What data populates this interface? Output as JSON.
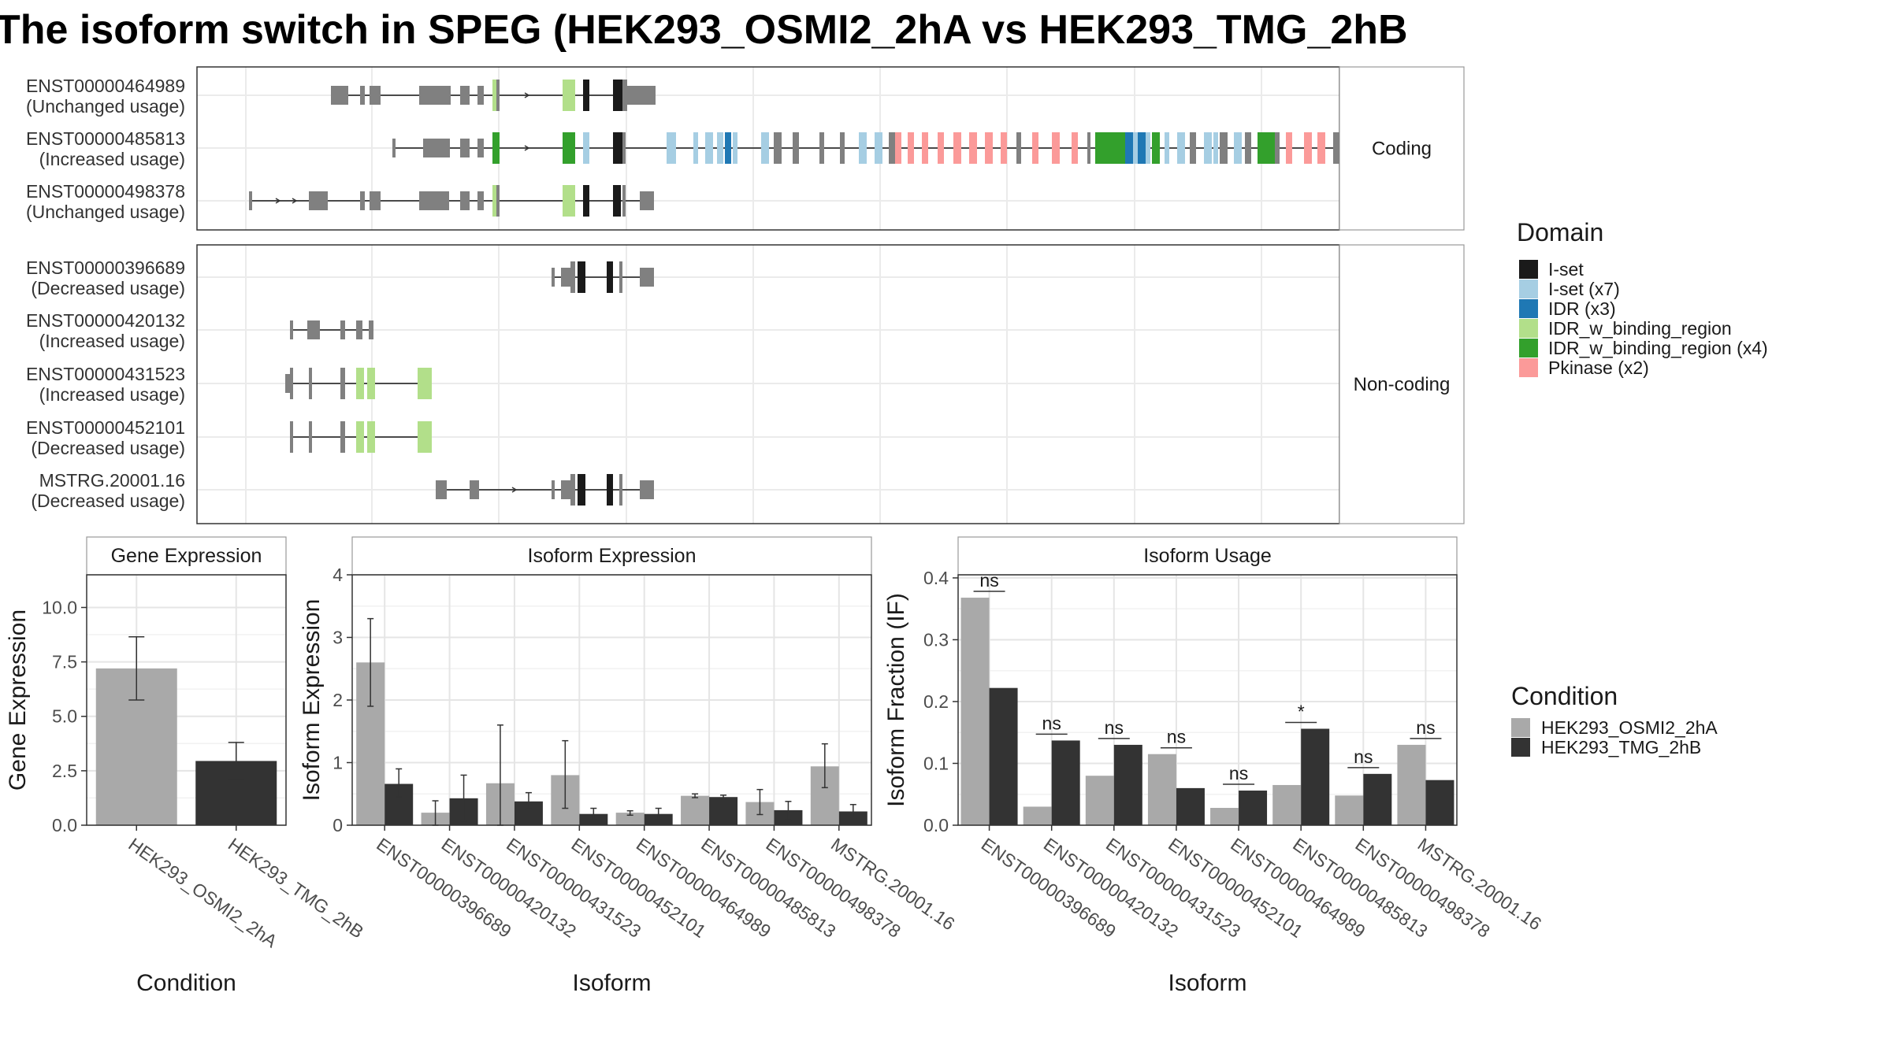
{
  "title": "The isoform switch in SPEG (HEK293_OSMI2_2hA vs HEK293_TMG_2hB",
  "structure": {
    "facets": [
      "Coding",
      "Non-coding"
    ],
    "transcripts": {
      "coding": [
        {
          "id": "ENST00000464989",
          "usage": "(Unchanged usage)"
        },
        {
          "id": "ENST00000485813",
          "usage": "(Increased usage)"
        },
        {
          "id": "ENST00000498378",
          "usage": "(Unchanged usage)"
        }
      ],
      "noncoding": [
        {
          "id": "ENST00000396689",
          "usage": "(Decreased usage)"
        },
        {
          "id": "ENST00000420132",
          "usage": "(Increased usage)"
        },
        {
          "id": "ENST00000431523",
          "usage": "(Increased usage)"
        },
        {
          "id": "ENST00000452101",
          "usage": "(Decreased usage)"
        },
        {
          "id": "MSTRG.20001.16",
          "usage": "(Decreased usage)"
        }
      ]
    }
  },
  "legend_domain": {
    "title": "Domain",
    "items": [
      {
        "label": "I-set",
        "color": "#1a1a1a"
      },
      {
        "label": "I-set (x7)",
        "color": "#a6cee3"
      },
      {
        "label": "IDR (x3)",
        "color": "#1f78b4"
      },
      {
        "label": "IDR_w_binding_region",
        "color": "#b2df8a"
      },
      {
        "label": "IDR_w_binding_region (x4)",
        "color": "#33a02c"
      },
      {
        "label": "Pkinase (x2)",
        "color": "#fb9a99"
      }
    ]
  },
  "legend_condition": {
    "title": "Condition",
    "items": [
      {
        "label": "HEK293_OSMI2_2hA",
        "color": "#a9a9a9"
      },
      {
        "label": "HEK293_TMG_2hB",
        "color": "#333333"
      }
    ]
  },
  "chart_data": [
    {
      "type": "bar",
      "title": "Gene Expression",
      "xlabel": "Condition",
      "ylabel": "Gene Expression",
      "ylim": [
        0,
        11.5
      ],
      "yticks": [
        "0.0",
        "2.5",
        "5.0",
        "7.5",
        "10.0"
      ],
      "categories": [
        "HEK293_OSMI2_2hA",
        "HEK293_TMG_2hB"
      ],
      "values": [
        7.2,
        2.95
      ],
      "err_low": [
        5.75,
        2.1
      ],
      "err_high": [
        8.65,
        3.8
      ]
    },
    {
      "type": "bar",
      "title": "Isoform Expression",
      "xlabel": "Isoform",
      "ylabel": "Isoform Expression",
      "ylim": [
        0,
        4
      ],
      "yticks": [
        "0",
        "1",
        "2",
        "3",
        "4"
      ],
      "categories": [
        "ENST00000396689",
        "ENST00000420132",
        "ENST00000431523",
        "ENST00000452101",
        "ENST00000464989",
        "ENST00000485813",
        "ENST00000498378",
        "MSTRG.20001.16"
      ],
      "series": [
        {
          "name": "HEK293_OSMI2_2hA",
          "values": [
            2.6,
            0.2,
            0.67,
            0.8,
            0.2,
            0.47,
            0.37,
            0.94
          ],
          "err_low": [
            1.9,
            0.0,
            0.0,
            0.27,
            0.16,
            0.44,
            0.17,
            0.6
          ],
          "err_high": [
            3.3,
            0.39,
            1.6,
            1.35,
            0.23,
            0.5,
            0.57,
            1.3
          ]
        },
        {
          "name": "HEK293_TMG_2hB",
          "values": [
            0.66,
            0.43,
            0.38,
            0.18,
            0.18,
            0.45,
            0.24,
            0.22
          ],
          "err_low": [
            0.45,
            0.07,
            0.26,
            0.09,
            0.09,
            0.42,
            0.09,
            0.11
          ],
          "err_high": [
            0.9,
            0.8,
            0.52,
            0.27,
            0.27,
            0.48,
            0.38,
            0.33
          ]
        }
      ]
    },
    {
      "type": "bar",
      "title": "Isoform Usage",
      "xlabel": "Isoform",
      "ylabel": "Isoform Fraction (IF)",
      "ylim": [
        0,
        0.405
      ],
      "yticks": [
        "0.0",
        "0.1",
        "0.2",
        "0.3",
        "0.4"
      ],
      "categories": [
        "ENST00000396689",
        "ENST00000420132",
        "ENST00000431523",
        "ENST00000452101",
        "ENST00000464989",
        "ENST00000485813",
        "ENST00000498378",
        "MSTRG.20001.16"
      ],
      "series": [
        {
          "name": "HEK293_OSMI2_2hA",
          "values": [
            0.368,
            0.03,
            0.08,
            0.115,
            0.028,
            0.065,
            0.048,
            0.13
          ]
        },
        {
          "name": "HEK293_TMG_2hB",
          "values": [
            0.222,
            0.137,
            0.13,
            0.06,
            0.056,
            0.156,
            0.083,
            0.073
          ]
        }
      ],
      "significance": [
        "ns",
        "ns",
        "ns",
        "ns",
        "ns",
        "*",
        "ns",
        "ns"
      ]
    }
  ]
}
